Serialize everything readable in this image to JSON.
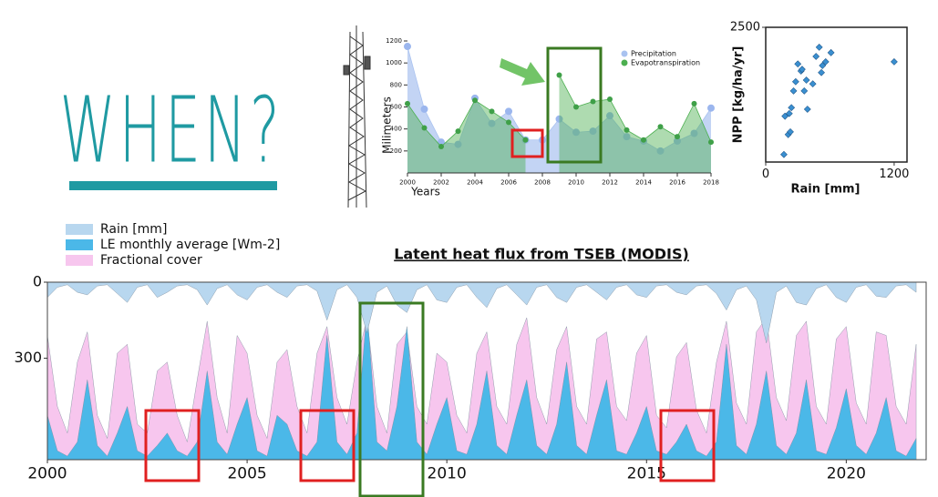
{
  "heading": "WHEN?",
  "chart_data": [
    {
      "type": "area",
      "xlabel": "Years",
      "ylabel": "Milimeters",
      "legend": "upper right",
      "x": [
        2000,
        2001,
        2002,
        2003,
        2004,
        2005,
        2006,
        2007,
        2008,
        2009,
        2010,
        2011,
        2012,
        2013,
        2014,
        2015,
        2016,
        2017,
        2018
      ],
      "xlim": [
        2000,
        2018
      ],
      "xticks": [
        2000,
        2002,
        2004,
        2006,
        2008,
        2010,
        2012,
        2014,
        2016,
        2018
      ],
      "ylim": [
        0,
        1200
      ],
      "yticks": [
        200,
        400,
        600,
        800,
        1000,
        1200
      ],
      "series": [
        {
          "name": "Precipitation",
          "color": "#a9c2f0",
          "values": [
            1150,
            580,
            280,
            260,
            680,
            450,
            560,
            300,
            300,
            490,
            370,
            380,
            520,
            330,
            290,
            200,
            290,
            360,
            590
          ]
        },
        {
          "name": "Evapotranspiration",
          "color": "#4caf50",
          "values": [
            630,
            410,
            240,
            380,
            660,
            560,
            460,
            300,
            null,
            890,
            600,
            650,
            670,
            390,
            300,
            420,
            330,
            630,
            280
          ]
        }
      ]
    },
    {
      "type": "scatter",
      "xlabel": "Rain [mm]",
      "ylabel": "NPP [kg/ha/yr]",
      "color": "#3a8fd0",
      "xlim": [
        0,
        1320
      ],
      "xticks": [
        0,
        1200
      ],
      "ylim": [
        0,
        2500
      ],
      "yticks": [
        2500
      ],
      "x": [
        170,
        180,
        210,
        220,
        240,
        260,
        280,
        300,
        330,
        340,
        360,
        380,
        390,
        440,
        470,
        500,
        520,
        530,
        560,
        610,
        1200,
        230
      ],
      "values": [
        140,
        850,
        510,
        900,
        1010,
        1320,
        1490,
        1820,
        1690,
        1720,
        1320,
        1520,
        980,
        1450,
        1960,
        2130,
        1660,
        1790,
        1860,
        2030,
        1860,
        560
      ]
    },
    {
      "type": "area",
      "title": "Latent heat flux from TSEB (MODIS)",
      "legend": "upper left",
      "inverted_y": true,
      "ylim": [
        0,
        700
      ],
      "yticks": [
        0,
        300
      ],
      "y2lim": [
        0,
        1
      ],
      "xlim": [
        2000,
        2022
      ],
      "xticks": [
        2000,
        2005,
        2010,
        2015,
        2020
      ],
      "x": [
        2000,
        2000.25,
        2000.5,
        2000.75,
        2001,
        2001.25,
        2001.5,
        2001.75,
        2002,
        2002.25,
        2002.5,
        2002.75,
        2003,
        2003.25,
        2003.5,
        2003.75,
        2004,
        2004.25,
        2004.5,
        2004.75,
        2005,
        2005.25,
        2005.5,
        2005.75,
        2006,
        2006.25,
        2006.5,
        2006.75,
        2007,
        2007.25,
        2007.5,
        2007.75,
        2008,
        2008.25,
        2008.5,
        2008.75,
        2009,
        2009.25,
        2009.5,
        2009.75,
        2010,
        2010.25,
        2010.5,
        2010.75,
        2011,
        2011.25,
        2011.5,
        2011.75,
        2012,
        2012.25,
        2012.5,
        2012.75,
        2013,
        2013.25,
        2013.5,
        2013.75,
        2014,
        2014.25,
        2014.5,
        2014.75,
        2015,
        2015.25,
        2015.5,
        2015.75,
        2016,
        2016.25,
        2016.5,
        2016.75,
        2017,
        2017.25,
        2017.5,
        2017.75,
        2018,
        2018.25,
        2018.5,
        2018.75,
        2019,
        2019.25,
        2019.5,
        2019.75,
        2020,
        2020.25,
        2020.5,
        2020.75,
        2021,
        2021.25,
        2021.5,
        2021.75
      ],
      "series": [
        {
          "name": "Fractional cover",
          "color": "#f7c6ee",
          "axis": "y2",
          "values": [
            0.7,
            0.3,
            0.15,
            0.55,
            0.72,
            0.25,
            0.12,
            0.6,
            0.65,
            0.2,
            0.15,
            0.5,
            0.55,
            0.25,
            0.1,
            0.45,
            0.78,
            0.35,
            0.15,
            0.7,
            0.6,
            0.25,
            0.12,
            0.55,
            0.62,
            0.3,
            0.15,
            0.6,
            0.75,
            0.35,
            0.2,
            0.55,
            0.8,
            0.3,
            0.15,
            0.65,
            0.72,
            0.3,
            0.2,
            0.6,
            0.55,
            0.25,
            0.15,
            0.6,
            0.72,
            0.3,
            0.2,
            0.65,
            0.8,
            0.35,
            0.2,
            0.62,
            0.75,
            0.3,
            0.2,
            0.68,
            0.72,
            0.3,
            0.22,
            0.6,
            0.7,
            0.25,
            0.18,
            0.58,
            0.66,
            0.28,
            0.15,
            0.55,
            0.78,
            0.32,
            0.2,
            0.72,
            0.8,
            0.35,
            0.22,
            0.7,
            0.78,
            0.3,
            0.2,
            0.68,
            0.75,
            0.32,
            0.2,
            0.72,
            0.7,
            0.3,
            0.2,
            0.65
          ]
        },
        {
          "name": "LE monthly average [Wm-2]",
          "color": "#4bb8e8",
          "axis": "y2",
          "values": [
            0.25,
            0.05,
            0.02,
            0.1,
            0.45,
            0.08,
            0.02,
            0.15,
            0.3,
            0.05,
            0.02,
            0.08,
            0.15,
            0.05,
            0.02,
            0.1,
            0.5,
            0.1,
            0.03,
            0.2,
            0.35,
            0.05,
            0.02,
            0.25,
            0.2,
            0.05,
            0.02,
            0.1,
            0.7,
            0.1,
            0.03,
            0.15,
            0.85,
            0.1,
            0.05,
            0.3,
            0.75,
            0.1,
            0.03,
            0.2,
            0.35,
            0.05,
            0.03,
            0.2,
            0.5,
            0.08,
            0.03,
            0.25,
            0.45,
            0.08,
            0.03,
            0.2,
            0.55,
            0.08,
            0.03,
            0.25,
            0.45,
            0.05,
            0.03,
            0.15,
            0.3,
            0.05,
            0.03,
            0.1,
            0.2,
            0.05,
            0.02,
            0.1,
            0.65,
            0.08,
            0.03,
            0.2,
            0.5,
            0.08,
            0.03,
            0.15,
            0.45,
            0.05,
            0.03,
            0.18,
            0.4,
            0.08,
            0.03,
            0.15,
            0.35,
            0.05,
            0.02,
            0.12
          ]
        },
        {
          "name": "Rain [mm]",
          "color": "#b8d7ef",
          "values": [
            60,
            20,
            10,
            40,
            50,
            15,
            10,
            45,
            80,
            20,
            10,
            60,
            40,
            15,
            10,
            30,
            90,
            25,
            10,
            50,
            70,
            20,
            10,
            40,
            60,
            15,
            10,
            35,
            150,
            30,
            10,
            60,
            200,
            40,
            15,
            90,
            120,
            30,
            10,
            70,
            80,
            20,
            10,
            60,
            100,
            25,
            10,
            50,
            90,
            20,
            10,
            60,
            80,
            20,
            10,
            40,
            70,
            20,
            10,
            50,
            60,
            15,
            10,
            40,
            50,
            15,
            10,
            45,
            110,
            30,
            15,
            70,
            240,
            40,
            15,
            80,
            90,
            25,
            10,
            60,
            80,
            20,
            10,
            55,
            60,
            15,
            10,
            40
          ]
        }
      ]
    }
  ]
}
